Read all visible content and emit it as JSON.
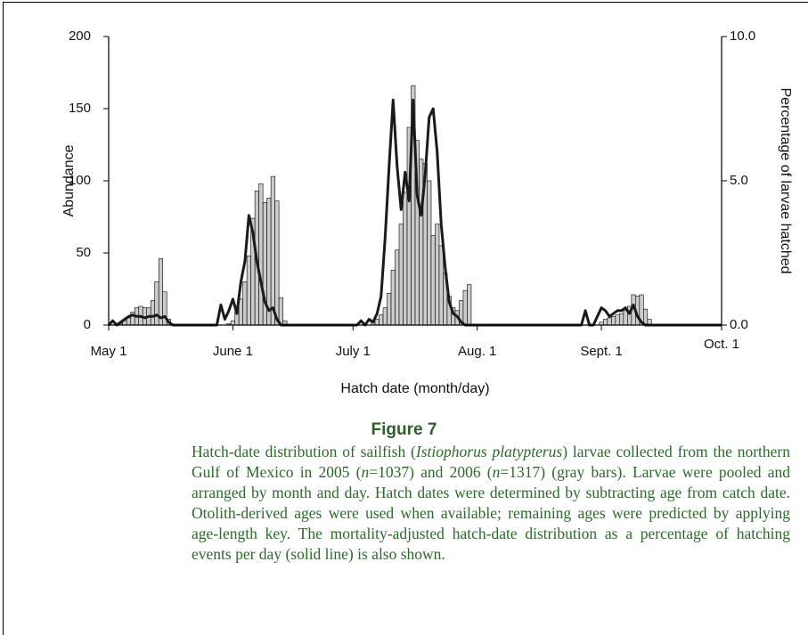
{
  "chart_data": {
    "type": "bar",
    "ylabel": "Abundance",
    "y2label": "Percentage of larvae hatched",
    "xlabel": "Hatch date (month/day)",
    "xlim": [
      0,
      153
    ],
    "xticks": [
      {
        "value": 0,
        "label": "May 1"
      },
      {
        "value": 31,
        "label": "June 1"
      },
      {
        "value": 61,
        "label": "July 1"
      },
      {
        "value": 92,
        "label": "Aug. 1"
      },
      {
        "value": 123,
        "label": "Sept. 1"
      },
      {
        "value": 153,
        "label": "Oct. 1"
      }
    ],
    "ylim": [
      0,
      200
    ],
    "yticks": [
      0,
      50,
      100,
      150,
      200
    ],
    "y2lim": [
      0,
      10
    ],
    "y2ticks": [
      {
        "value": 0,
        "label": "0.0"
      },
      {
        "value": 5,
        "label": "5.0"
      },
      {
        "value": 10,
        "label": "10.0"
      }
    ],
    "series": [
      {
        "type": "bar",
        "color": "#cccccc",
        "x": [
          3,
          4,
          5,
          6,
          7,
          8,
          9,
          10,
          11,
          12,
          13,
          14,
          15,
          30,
          31,
          32,
          33,
          34,
          35,
          36,
          37,
          38,
          39,
          40,
          41,
          42,
          43,
          44,
          66,
          67,
          68,
          69,
          70,
          71,
          72,
          73,
          74,
          75,
          76,
          77,
          78,
          79,
          80,
          81,
          82,
          83,
          84,
          85,
          86,
          87,
          88,
          89,
          90,
          123,
          124,
          125,
          126,
          127,
          128,
          129,
          130,
          131,
          132,
          133,
          134,
          135
        ],
        "values": [
          1,
          3,
          5,
          9,
          12,
          13,
          12,
          12,
          17,
          30,
          46,
          23,
          4,
          1,
          3,
          10,
          18,
          30,
          48,
          74,
          93,
          98,
          85,
          88,
          103,
          86,
          19,
          3,
          2,
          4,
          7,
          12,
          22,
          38,
          52,
          70,
          92,
          137,
          166,
          128,
          115,
          112,
          100,
          62,
          70,
          55,
          36,
          20,
          12,
          10,
          17,
          24,
          28,
          2,
          4,
          5,
          6,
          7,
          8,
          10,
          13,
          21,
          20,
          21,
          11,
          4
        ]
      },
      {
        "type": "line",
        "color": "#1a1a1a",
        "axis": "y2",
        "x": [
          0,
          1,
          2,
          3,
          4,
          5,
          6,
          7,
          8,
          9,
          10,
          11,
          12,
          13,
          14,
          15,
          16,
          27,
          28,
          29,
          30,
          31,
          32,
          33,
          34,
          35,
          36,
          37,
          38,
          39,
          40,
          41,
          42,
          43,
          62,
          63,
          64,
          65,
          66,
          67,
          68,
          69,
          70,
          71,
          72,
          73,
          74,
          75,
          76,
          77,
          78,
          79,
          80,
          81,
          82,
          83,
          84,
          85,
          86,
          87,
          88,
          89,
          118,
          119,
          120,
          121,
          122,
          123,
          124,
          125,
          126,
          127,
          128,
          129,
          130,
          131,
          132,
          133,
          134,
          153
        ],
        "values": [
          0,
          0.15,
          0,
          0.1,
          0.2,
          0.3,
          0.35,
          0.3,
          0.3,
          0.25,
          0.3,
          0.3,
          0.35,
          0.25,
          0.3,
          0.1,
          0,
          0,
          0.7,
          0.2,
          0.5,
          0.9,
          0.4,
          1.5,
          2.2,
          3.8,
          3.2,
          2.2,
          1.5,
          0.8,
          0.5,
          0.6,
          0.2,
          0,
          0,
          0.15,
          0,
          0.2,
          0.1,
          0.4,
          1.0,
          3.0,
          5.5,
          7.8,
          5.5,
          4.0,
          5.3,
          4.3,
          7.8,
          4.5,
          3.8,
          5.2,
          7.2,
          7.5,
          6.0,
          3.5,
          2.0,
          0.8,
          0.4,
          0.3,
          0.1,
          0,
          0,
          0.5,
          0,
          0,
          0.3,
          0.6,
          0.5,
          0.3,
          0.4,
          0.5,
          0.5,
          0.6,
          0.4,
          0.7,
          0.3,
          0.1,
          0,
          0
        ]
      }
    ]
  },
  "figure": {
    "label": "Figure 7",
    "caption": [
      {
        "text": "Hatch-date distribution of sailfish ("
      },
      {
        "text": "Istiophorus platypterus",
        "italic": true
      },
      {
        "text": ") larvae collected from the northern Gulf of Mexico in 2005 ("
      },
      {
        "text": "n",
        "italic": true
      },
      {
        "text": "=1037) and 2006 ("
      },
      {
        "text": "n",
        "italic": true
      },
      {
        "text": "=1317) (gray bars). Larvae were pooled and arranged by month and day. Hatch dates were determined by subtracting age from catch date. Otolith-derived ages were used when available; remaining ages were predicted by applying age-length key. The mortality-adjusted hatch-date distribution as a percentage of hatching events per day (solid line) is also shown."
      }
    ]
  }
}
